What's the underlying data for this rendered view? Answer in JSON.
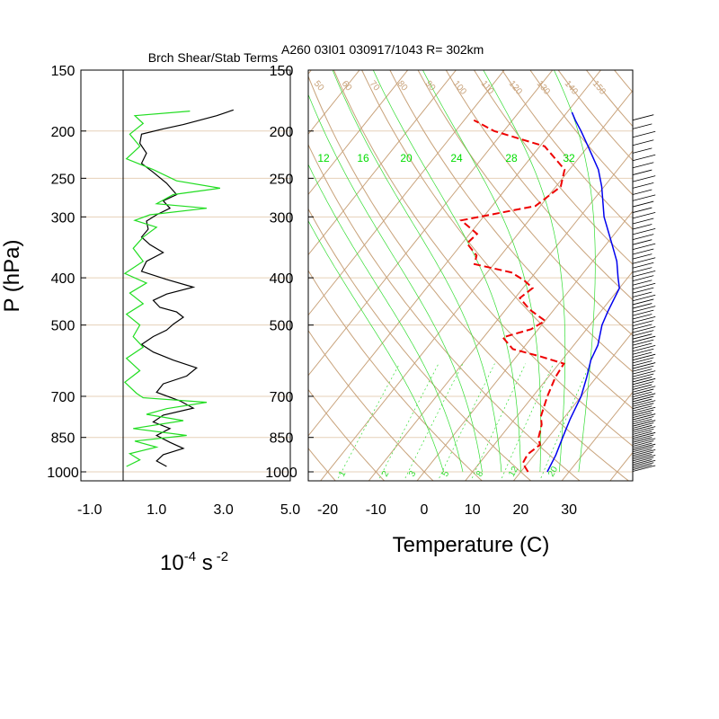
{
  "header": {
    "left_title": "Brch Shear/Stab Terms",
    "right_title": "A260 03I01 030917/1043 R= 302km"
  },
  "labels": {
    "pressure_axis": "P (hPa)",
    "temperature_axis": "Temperature (C)",
    "units_base": "10",
    "units_exp1": "-4",
    "units_mid": " s",
    "units_exp2": "-2"
  },
  "colors": {
    "isotherm": "#c8a27a",
    "pressure_grid": "#e6d0b8",
    "mixing_ratio": "#33dd33",
    "temperature": "#0000ee",
    "dewpoint": "#ee0000",
    "shear": "#000000",
    "stability": "#22dd22"
  },
  "chart_data": [
    {
      "type": "line",
      "title": "Brch Shear/Stab Terms",
      "xlabel": "10-4 s -2",
      "ylabel": "P (hPa)",
      "xlim": [
        -1.0,
        5.0
      ],
      "ylim": [
        1000,
        150
      ],
      "x_ticks": [
        "-1.0",
        "1.0",
        "3.0",
        "5.0"
      ],
      "y_ticks": [
        "150",
        "200",
        "250",
        "300",
        "400",
        "500",
        "700",
        "850",
        "1000"
      ],
      "y_tick_values": [
        150,
        200,
        250,
        300,
        400,
        500,
        700,
        850,
        1000
      ],
      "y_scale": "log",
      "series": [
        {
          "color": "#000000",
          "points": [
            [
              3.3,
              181
            ],
            [
              2.8,
              186
            ],
            [
              1.8,
              194
            ],
            [
              1.2,
              198
            ],
            [
              0.55,
              203
            ],
            [
              0.5,
              212
            ],
            [
              0.7,
              222
            ],
            [
              0.55,
              233
            ],
            [
              0.9,
              243
            ],
            [
              1.3,
              256
            ],
            [
              1.6,
              270
            ],
            [
              1.2,
              278
            ],
            [
              1.4,
              288
            ],
            [
              1.0,
              297
            ],
            [
              0.7,
              306
            ],
            [
              0.75,
              318
            ],
            [
              0.55,
              330
            ],
            [
              0.8,
              342
            ],
            [
              1.2,
              355
            ],
            [
              0.7,
              370
            ],
            [
              0.55,
              388
            ],
            [
              1.3,
              403
            ],
            [
              2.1,
              418
            ],
            [
              1.3,
              432
            ],
            [
              0.9,
              445
            ],
            [
              1.1,
              460
            ],
            [
              1.6,
              470
            ],
            [
              1.8,
              482
            ],
            [
              1.5,
              498
            ],
            [
              1.3,
              512
            ],
            [
              0.9,
              528
            ],
            [
              0.55,
              548
            ],
            [
              0.9,
              568
            ],
            [
              1.5,
              590
            ],
            [
              2.2,
              612
            ],
            [
              1.9,
              636
            ],
            [
              1.2,
              660
            ],
            [
              1.0,
              687
            ],
            [
              1.7,
              715
            ],
            [
              2.1,
              740
            ],
            [
              1.2,
              765
            ],
            [
              0.9,
              790
            ],
            [
              1.4,
              815
            ],
            [
              1.0,
              842
            ],
            [
              1.4,
              870
            ],
            [
              1.8,
              895
            ],
            [
              1.2,
              922
            ],
            [
              1.0,
              950
            ],
            [
              1.3,
              975
            ]
          ]
        },
        {
          "color": "#22dd22",
          "points": [
            [
              2.0,
              182
            ],
            [
              0.35,
              186
            ],
            [
              0.6,
              193
            ],
            [
              0.2,
              203
            ],
            [
              0.5,
              215
            ],
            [
              0.1,
              228
            ],
            [
              0.9,
              240
            ],
            [
              1.6,
              253
            ],
            [
              2.9,
              262
            ],
            [
              1.5,
              270
            ],
            [
              1.0,
              282
            ],
            [
              2.5,
              288
            ],
            [
              0.8,
              297
            ],
            [
              0.35,
              305
            ],
            [
              1.0,
              315
            ],
            [
              0.6,
              330
            ],
            [
              0.3,
              348
            ],
            [
              0.6,
              370
            ],
            [
              0.05,
              392
            ],
            [
              0.7,
              410
            ],
            [
              0.2,
              430
            ],
            [
              0.6,
              452
            ],
            [
              0.1,
              475
            ],
            [
              0.5,
              500
            ],
            [
              0.3,
              528
            ],
            [
              0.6,
              555
            ],
            [
              0.1,
              585
            ],
            [
              0.5,
              620
            ],
            [
              0.05,
              655
            ],
            [
              0.4,
              690
            ],
            [
              0.6,
              705
            ],
            [
              2.5,
              720
            ],
            [
              1.3,
              742
            ],
            [
              0.7,
              762
            ],
            [
              1.8,
              785
            ],
            [
              0.3,
              815
            ],
            [
              1.9,
              842
            ],
            [
              0.35,
              865
            ],
            [
              1.0,
              890
            ],
            [
              0.2,
              918
            ],
            [
              0.5,
              945
            ],
            [
              0.1,
              975
            ]
          ]
        }
      ]
    },
    {
      "type": "line",
      "title": "A260 03I01 030917/1043 R= 302km",
      "xlabel": "Temperature (C)",
      "ylabel": "",
      "xlim": [
        -24,
        42
      ],
      "ylim": [
        1000,
        150
      ],
      "x_ticks": [
        "-20",
        "-10",
        "0",
        "10",
        "20",
        "30"
      ],
      "y_ticks": [
        "150",
        "200",
        "250",
        "300",
        "400",
        "500",
        "700",
        "850",
        "1000"
      ],
      "y_scale": "log",
      "skew": "skew-T",
      "series": [
        {
          "name": "Temperature",
          "color": "#0000ee",
          "style": "solid",
          "points": [
            [
              25.5,
              1000
            ],
            [
              24.5,
              925
            ],
            [
              23.0,
              850
            ],
            [
              21.5,
              780
            ],
            [
              20.0,
              700
            ],
            [
              18.0,
              640
            ],
            [
              16.0,
              590
            ],
            [
              15.0,
              550
            ],
            [
              12.5,
              500
            ],
            [
              11.5,
              470
            ],
            [
              10.0,
              420
            ],
            [
              8.0,
              400
            ],
            [
              5.0,
              370
            ],
            [
              1.0,
              340
            ],
            [
              -5.0,
              300
            ],
            [
              -10.5,
              260
            ],
            [
              -14.0,
              240
            ],
            [
              -20.0,
              215
            ],
            [
              -24.0,
              200
            ],
            [
              -27.0,
              190
            ],
            [
              -29.0,
              183
            ]
          ]
        },
        {
          "name": "Dewpoint",
          "color": "#ee0000",
          "style": "dashed",
          "points": [
            [
              21.5,
              1000
            ],
            [
              19.0,
              960
            ],
            [
              18.5,
              920
            ],
            [
              19.5,
              880
            ],
            [
              18.0,
              850
            ],
            [
              16.5,
              800
            ],
            [
              15.0,
              770
            ],
            [
              13.0,
              700
            ],
            [
              11.5,
              640
            ],
            [
              11.0,
              600
            ],
            [
              5.0,
              580
            ],
            [
              -2.0,
              560
            ],
            [
              -6.0,
              530
            ],
            [
              -1.5,
              510
            ],
            [
              0.0,
              490
            ],
            [
              -5.0,
              465
            ],
            [
              -9.0,
              440
            ],
            [
              -8.0,
              420
            ],
            [
              -11.0,
              405
            ],
            [
              -15.0,
              390
            ],
            [
              -24.0,
              375
            ],
            [
              -25.0,
              360
            ],
            [
              -29.0,
              340
            ],
            [
              -28.5,
              325
            ],
            [
              -34.0,
              305
            ],
            [
              -21.0,
              285
            ],
            [
              -19.0,
              260
            ],
            [
              -21.0,
              240
            ],
            [
              -29.0,
              215
            ],
            [
              -42.0,
              200
            ],
            [
              -48.0,
              190
            ]
          ]
        }
      ],
      "isotherms_c": [
        -110,
        -100,
        -90,
        -80,
        -70,
        -60,
        -50,
        -40,
        -30,
        -20,
        -10,
        0,
        10,
        20,
        30,
        40
      ],
      "dry_adiabat_labels": [
        "50",
        "60",
        "70",
        "80",
        "90",
        "100",
        "110",
        "120",
        "130",
        "140",
        "150"
      ],
      "moist_adiabat_labels": [
        "12",
        "16",
        "20",
        "24",
        "28",
        "32"
      ],
      "mixing_ratio_labels": [
        "1",
        "2",
        "3",
        "5",
        "8",
        "12",
        "20"
      ]
    }
  ]
}
